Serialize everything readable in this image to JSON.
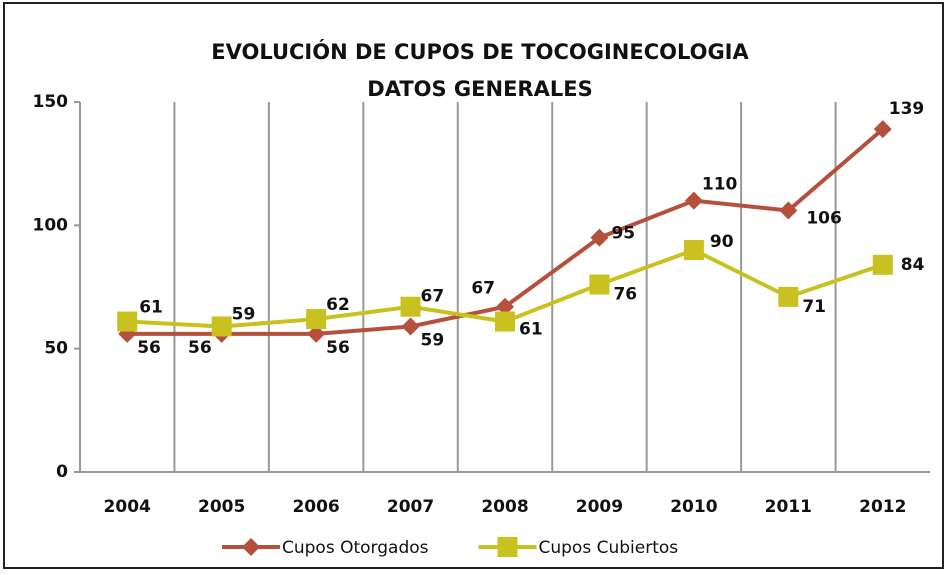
{
  "chart_data": {
    "type": "line",
    "title": "EVOLUCIÓN DE CUPOS DE TOCOGINECOLOGIA",
    "subtitle": "DATOS GENERALES",
    "categories": [
      "2004",
      "2005",
      "2006",
      "2007",
      "2008",
      "2009",
      "2010",
      "2011",
      "2012"
    ],
    "series": [
      {
        "name": "Cupos Otorgados",
        "color": "#b5503c",
        "marker": "diamond",
        "values": [
          56,
          56,
          56,
          59,
          67,
          95,
          110,
          106,
          139
        ]
      },
      {
        "name": "Cupos Cubiertos",
        "color": "#c9c11f",
        "marker": "square",
        "values": [
          61,
          59,
          62,
          67,
          61,
          76,
          90,
          71,
          84
        ]
      }
    ],
    "ylim": [
      0,
      150
    ],
    "yticks": [
      0,
      50,
      100,
      150
    ],
    "grid": true,
    "legend": "bottom"
  }
}
